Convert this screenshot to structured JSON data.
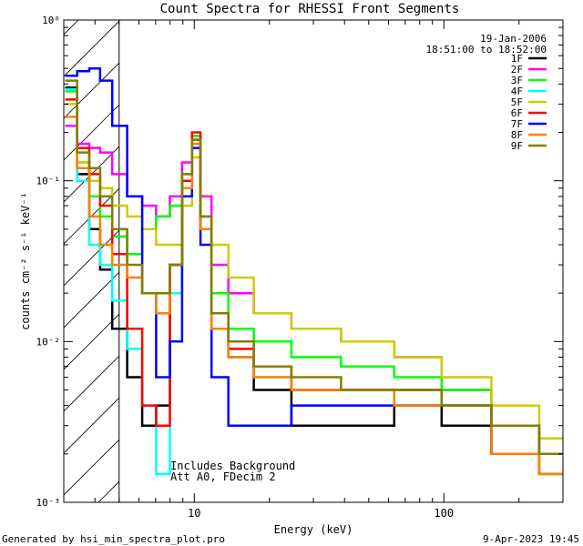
{
  "chart_data": {
    "type": "line",
    "title": "Count Spectra for RHESSI Front Segments",
    "xlabel": "Energy (keV)",
    "ylabel": "counts cm⁻² s⁻¹ keV⁻¹",
    "xscale": "log",
    "yscale": "log",
    "xlim": [
      3,
      300
    ],
    "ylim": [
      0.001,
      1
    ],
    "x_tick_labels": [
      "10",
      "100"
    ],
    "y_tick_labels": [
      "10⁻³",
      "10⁻²",
      "10⁻¹",
      "10⁰"
    ],
    "shaded_region_below_keV": 5,
    "legend_position": "top-right",
    "date_text": "19-Jan-2006",
    "time_range_text": "18:51:00 to 18:52:00",
    "annotations": [
      "Includes Background",
      "Att A0, FDecim 2"
    ],
    "series": [
      {
        "name": "1F",
        "color": "#000000",
        "values": [
          [
            3.2,
            0.38
          ],
          [
            3.6,
            0.11
          ],
          [
            4.0,
            0.05
          ],
          [
            4.4,
            0.028
          ],
          [
            5.0,
            0.012
          ],
          [
            5.8,
            0.006
          ],
          [
            6.6,
            0.003
          ],
          [
            7.5,
            0.004
          ],
          [
            8.5,
            0.03
          ],
          [
            9.4,
            0.1
          ],
          [
            10.2,
            0.18
          ],
          [
            11.0,
            0.06
          ],
          [
            12.5,
            0.012
          ],
          [
            15,
            0.008
          ],
          [
            20,
            0.005
          ],
          [
            30,
            0.003
          ],
          [
            50,
            0.003
          ],
          [
            80,
            0.004
          ],
          [
            120,
            0.003
          ],
          [
            200,
            0.002
          ],
          [
            290,
            0.0015
          ]
        ]
      },
      {
        "name": "2F",
        "color": "#ff00ff",
        "values": [
          [
            3.2,
            0.22
          ],
          [
            3.6,
            0.17
          ],
          [
            4.0,
            0.16
          ],
          [
            4.4,
            0.15
          ],
          [
            5.0,
            0.11
          ],
          [
            5.8,
            0.08
          ],
          [
            6.6,
            0.07
          ],
          [
            7.5,
            0.06
          ],
          [
            8.5,
            0.08
          ],
          [
            9.4,
            0.13
          ],
          [
            10.2,
            0.19
          ],
          [
            11.0,
            0.08
          ],
          [
            12.5,
            0.03
          ],
          [
            15,
            0.02
          ],
          [
            20,
            0.015
          ],
          [
            30,
            0.012
          ],
          [
            50,
            0.01
          ],
          [
            80,
            0.008
          ],
          [
            120,
            0.005
          ],
          [
            200,
            0.003
          ],
          [
            290,
            0.002
          ]
        ]
      },
      {
        "name": "3F",
        "color": "#00ff00",
        "values": [
          [
            3.2,
            0.36
          ],
          [
            3.6,
            0.13
          ],
          [
            4.0,
            0.08
          ],
          [
            4.4,
            0.06
          ],
          [
            5.0,
            0.045
          ],
          [
            5.8,
            0.035
          ],
          [
            6.6,
            0.05
          ],
          [
            7.5,
            0.06
          ],
          [
            8.5,
            0.07
          ],
          [
            9.4,
            0.11
          ],
          [
            10.2,
            0.19
          ],
          [
            11.0,
            0.06
          ],
          [
            12.5,
            0.02
          ],
          [
            15,
            0.012
          ],
          [
            20,
            0.01
          ],
          [
            30,
            0.008
          ],
          [
            50,
            0.007
          ],
          [
            80,
            0.006
          ],
          [
            120,
            0.005
          ],
          [
            200,
            0.003
          ],
          [
            290,
            0.002
          ]
        ]
      },
      {
        "name": "4F",
        "color": "#00ffff",
        "values": [
          [
            3.2,
            0.37
          ],
          [
            3.6,
            0.1
          ],
          [
            4.0,
            0.04
          ],
          [
            4.4,
            0.03
          ],
          [
            5.0,
            0.018
          ],
          [
            5.8,
            0.009
          ],
          [
            6.6,
            0.004
          ],
          [
            7.5,
            0.0015
          ],
          [
            8.5,
            0.02
          ],
          [
            9.4,
            0.09
          ],
          [
            10.2,
            0.17
          ],
          [
            11.0,
            0.05
          ],
          [
            12.5,
            0.012
          ],
          [
            15,
            0.008
          ],
          [
            20,
            0.006
          ],
          [
            30,
            0.005
          ],
          [
            50,
            0.005
          ],
          [
            80,
            0.005
          ],
          [
            120,
            0.004
          ],
          [
            200,
            0.003
          ],
          [
            290,
            0.002
          ]
        ]
      },
      {
        "name": "5F",
        "color": "#cccc00",
        "values": [
          [
            3.2,
            0.3
          ],
          [
            3.6,
            0.13
          ],
          [
            4.0,
            0.1
          ],
          [
            4.4,
            0.09
          ],
          [
            5.0,
            0.07
          ],
          [
            5.8,
            0.06
          ],
          [
            6.6,
            0.05
          ],
          [
            7.5,
            0.04
          ],
          [
            8.5,
            0.04
          ],
          [
            9.4,
            0.07
          ],
          [
            10.2,
            0.14
          ],
          [
            11.0,
            0.05
          ],
          [
            12.5,
            0.04
          ],
          [
            15,
            0.025
          ],
          [
            20,
            0.015
          ],
          [
            30,
            0.012
          ],
          [
            50,
            0.01
          ],
          [
            80,
            0.008
          ],
          [
            120,
            0.006
          ],
          [
            200,
            0.004
          ],
          [
            290,
            0.0025
          ]
        ]
      },
      {
        "name": "6F",
        "color": "#ff0000",
        "values": [
          [
            3.2,
            0.32
          ],
          [
            3.6,
            0.16
          ],
          [
            4.0,
            0.11
          ],
          [
            4.4,
            0.07
          ],
          [
            5.0,
            0.035
          ],
          [
            5.8,
            0.012
          ],
          [
            6.6,
            0.004
          ],
          [
            7.5,
            0.003
          ],
          [
            8.5,
            0.03
          ],
          [
            9.4,
            0.1
          ],
          [
            10.2,
            0.2
          ],
          [
            11.0,
            0.05
          ],
          [
            12.5,
            0.015
          ],
          [
            15,
            0.009
          ],
          [
            20,
            0.007
          ],
          [
            30,
            0.005
          ],
          [
            50,
            0.005
          ],
          [
            80,
            0.005
          ],
          [
            120,
            0.004
          ],
          [
            200,
            0.003
          ],
          [
            290,
            0.002
          ]
        ]
      },
      {
        "name": "7F",
        "color": "#0000ff",
        "values": [
          [
            3.2,
            0.45
          ],
          [
            3.6,
            0.48
          ],
          [
            4.0,
            0.5
          ],
          [
            4.4,
            0.42
          ],
          [
            5.0,
            0.22
          ],
          [
            5.8,
            0.08
          ],
          [
            6.6,
            0.02
          ],
          [
            7.5,
            0.006
          ],
          [
            8.5,
            0.01
          ],
          [
            9.4,
            0.08
          ],
          [
            10.2,
            0.16
          ],
          [
            11.0,
            0.04
          ],
          [
            12.5,
            0.006
          ],
          [
            15,
            0.003
          ],
          [
            20,
            0.003
          ],
          [
            30,
            0.004
          ],
          [
            50,
            0.004
          ],
          [
            80,
            0.004
          ],
          [
            120,
            0.004
          ],
          [
            200,
            0.002
          ],
          [
            290,
            0.002
          ]
        ]
      },
      {
        "name": "8F",
        "color": "#ff8000",
        "values": [
          [
            3.2,
            0.25
          ],
          [
            3.6,
            0.12
          ],
          [
            4.0,
            0.06
          ],
          [
            4.4,
            0.04
          ],
          [
            5.0,
            0.03
          ],
          [
            5.8,
            0.025
          ],
          [
            6.6,
            0.02
          ],
          [
            7.5,
            0.015
          ],
          [
            8.5,
            0.03
          ],
          [
            9.4,
            0.09
          ],
          [
            10.2,
            0.17
          ],
          [
            11.0,
            0.05
          ],
          [
            12.5,
            0.012
          ],
          [
            15,
            0.008
          ],
          [
            20,
            0.006
          ],
          [
            30,
            0.005
          ],
          [
            50,
            0.005
          ],
          [
            80,
            0.004
          ],
          [
            120,
            0.004
          ],
          [
            200,
            0.002
          ],
          [
            290,
            0.0015
          ]
        ]
      },
      {
        "name": "9F",
        "color": "#808000",
        "values": [
          [
            3.2,
            0.42
          ],
          [
            3.6,
            0.15
          ],
          [
            4.0,
            0.12
          ],
          [
            4.4,
            0.08
          ],
          [
            5.0,
            0.05
          ],
          [
            5.8,
            0.03
          ],
          [
            6.6,
            0.02
          ],
          [
            7.5,
            0.02
          ],
          [
            8.5,
            0.03
          ],
          [
            9.4,
            0.11
          ],
          [
            10.2,
            0.18
          ],
          [
            11.0,
            0.06
          ],
          [
            12.5,
            0.015
          ],
          [
            15,
            0.01
          ],
          [
            20,
            0.007
          ],
          [
            30,
            0.006
          ],
          [
            50,
            0.005
          ],
          [
            80,
            0.005
          ],
          [
            120,
            0.004
          ],
          [
            200,
            0.003
          ],
          [
            290,
            0.002
          ]
        ]
      }
    ]
  },
  "footer": {
    "generated_by": "Generated by hsi_min_spectra_plot.pro",
    "timestamp": "9-Apr-2023 19:45"
  }
}
